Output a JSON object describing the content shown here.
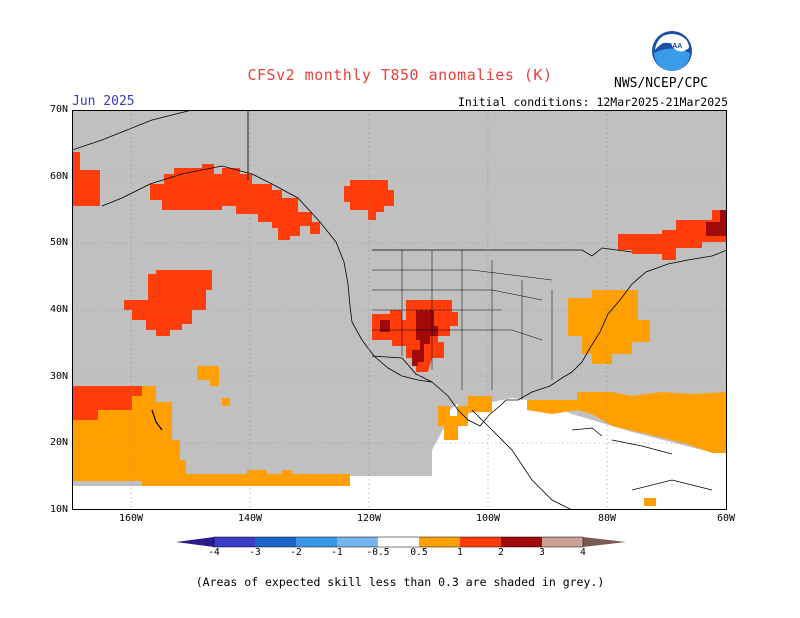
{
  "header": {
    "title": "CFSv2 monthly T850 anomalies (K)",
    "target_month": "Jun 2025",
    "agency": "NWS/NCEP/CPC",
    "initial_conditions": "Initial conditions: 12Mar2025-21Mar2025",
    "logo_text": "NOAA"
  },
  "map": {
    "lat_labels": [
      "70N",
      "60N",
      "50N",
      "40N",
      "30N",
      "20N",
      "10N"
    ],
    "lon_labels": [
      "160W",
      "140W",
      "120W",
      "100W",
      "80W",
      "60W"
    ],
    "skill_mask_color": "#c0c0c0",
    "anomaly_regions": [
      {
        "area": "Gulf of Alaska coast",
        "level": "1 to 2"
      },
      {
        "area": "Northeast Pacific near 40N 150W",
        "level": "1 to 2"
      },
      {
        "area": "Southwest US / Four Corners",
        "level": "2 to 3"
      },
      {
        "area": "Mid-Atlantic US",
        "level": "0.5 to 1"
      },
      {
        "area": "Eastern Canada",
        "level": "1 to 3"
      },
      {
        "area": "Subtropical Pacific near Hawaii",
        "level": "0.5 to 1"
      },
      {
        "area": "Gulf of Mexico / Caribbean",
        "level": "0.5 to 1"
      }
    ]
  },
  "colorbar": {
    "labels": [
      "-4",
      "-3",
      "-2",
      "-1",
      "-0.5",
      "0.5",
      "1",
      "2",
      "3",
      "4"
    ],
    "colors": {
      "lt_-4": "#2a1a8c",
      "-4_-3": "#3c3cc8",
      "-3_-2": "#1e64c8",
      "-2_-1": "#3c96e6",
      "-1_-0.5": "#78b4f0",
      "-0.5_0.5": "#ffffff",
      "0.5_1": "#ffa000",
      "1_2": "#ff3c0a",
      "2_3": "#a00a0a",
      "3_4": "#c8a096",
      "gt_4": "#785a50"
    }
  },
  "footnote": "(Areas of expected skill less than 0.3 are shaded in grey.)"
}
